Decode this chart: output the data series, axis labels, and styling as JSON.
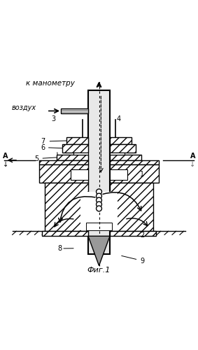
{
  "title": "Фиг.1",
  "label_k_manometru": "к манометру",
  "label_vozdukh": "воздух",
  "bg_color": "#ffffff",
  "hatch_color": "#888888",
  "line_color": "#000000"
}
